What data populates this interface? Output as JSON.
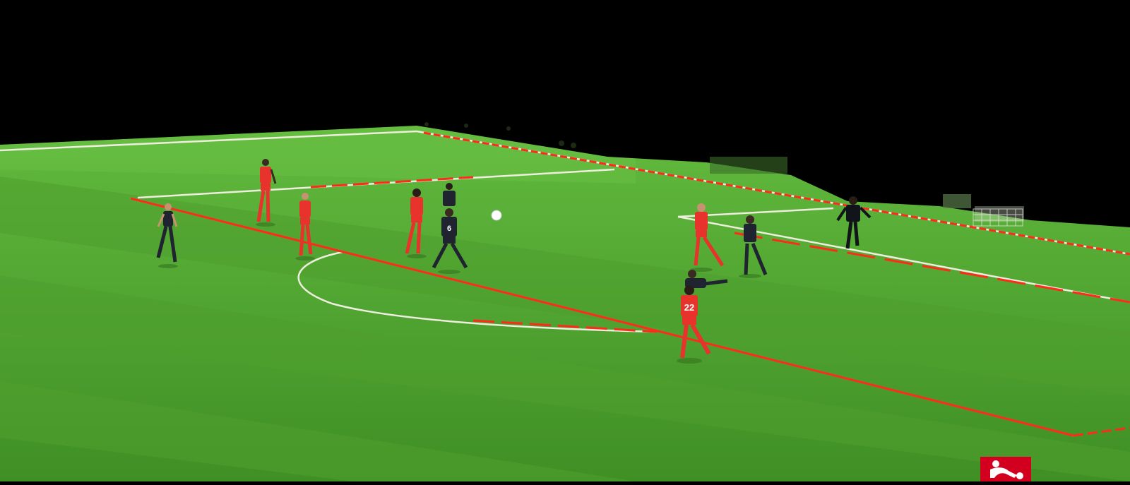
{
  "scene": {
    "subject": "football-match-broadcast",
    "colors": {
      "background": "#000000",
      "grass_light": "#5fb83a",
      "grass_dark": "#4a9c2c",
      "pitch_line": "#f2f2e6",
      "highlight_line": "#ff2a1a",
      "team_red": "#e8322c",
      "team_dark": "#1f2430",
      "ball": "#ffffff",
      "logo_bg": "#d2001e"
    },
    "players": [
      {
        "team": "dark",
        "number": ""
      },
      {
        "team": "red",
        "number": ""
      },
      {
        "team": "red",
        "number": ""
      },
      {
        "team": "red",
        "number": ""
      },
      {
        "team": "dark",
        "number": ""
      },
      {
        "team": "dark",
        "number": "6"
      },
      {
        "team": "red",
        "number": ""
      },
      {
        "team": "dark",
        "number": ""
      },
      {
        "team": "dark",
        "number": ""
      },
      {
        "team": "red",
        "number": "22"
      },
      {
        "team": "dark",
        "number": "goalkeeper"
      }
    ],
    "logo": {
      "icon": "bundesliga-logo-icon"
    }
  }
}
